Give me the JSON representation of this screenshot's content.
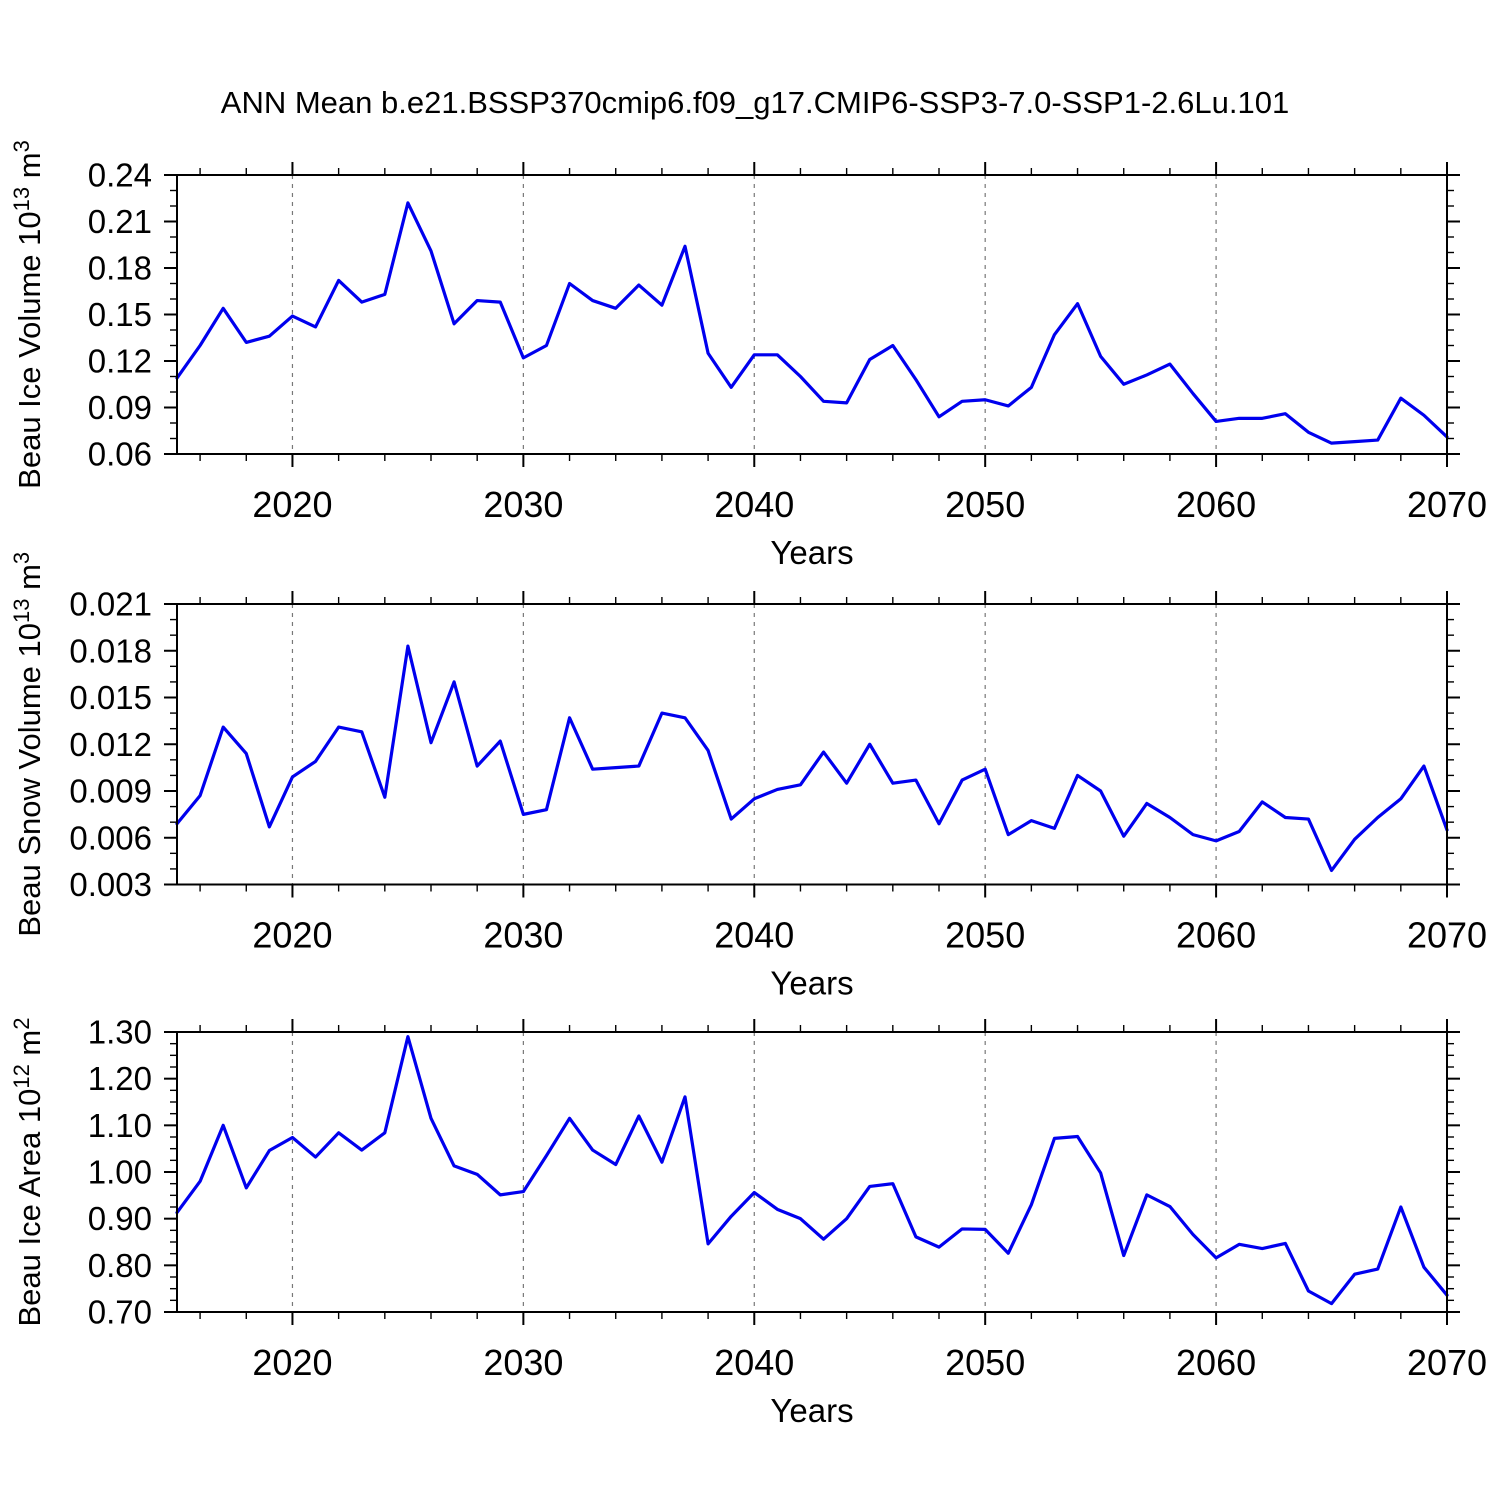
{
  "title": "ANN Mean b.e21.BSSP370cmip6.f09_g17.CMIP6-SSP3-7.0-SSP1-2.6Lu.101",
  "colors": {
    "line": "#0000ee",
    "grid": "#787878",
    "axis": "#000000",
    "background": "#ffffff",
    "text": "#000000"
  },
  "x_axis": {
    "label": "Years",
    "range": [
      2015,
      2070
    ],
    "major_ticks": [
      {
        "v": 2020,
        "label": "2020"
      },
      {
        "v": 2030,
        "label": "2030"
      },
      {
        "v": 2040,
        "label": "2040"
      },
      {
        "v": 2050,
        "label": "2050"
      },
      {
        "v": 2060,
        "label": "2060"
      },
      {
        "v": 2070,
        "label": "2070"
      }
    ],
    "minor_step": 2,
    "gridline_years": [
      2020,
      2030,
      2040,
      2050,
      2060
    ]
  },
  "years": [
    2015,
    2016,
    2017,
    2018,
    2019,
    2020,
    2021,
    2022,
    2023,
    2024,
    2025,
    2026,
    2027,
    2028,
    2029,
    2030,
    2031,
    2032,
    2033,
    2034,
    2035,
    2036,
    2037,
    2038,
    2039,
    2040,
    2041,
    2042,
    2043,
    2044,
    2045,
    2046,
    2047,
    2048,
    2049,
    2050,
    2051,
    2052,
    2053,
    2054,
    2055,
    2056,
    2057,
    2058,
    2059,
    2060,
    2061,
    2062,
    2063,
    2064,
    2065,
    2066,
    2067,
    2068,
    2069,
    2070
  ],
  "chart_data": [
    {
      "type": "line",
      "name": "beau-ice-volume",
      "ylabel_parts": [
        {
          "t": "Beau Ice Volume 10"
        },
        {
          "t": "13",
          "sup": true
        },
        {
          "t": " m"
        },
        {
          "t": "3",
          "sup": true
        }
      ],
      "ylim": [
        0.06,
        0.24
      ],
      "yticks": [
        {
          "v": 0.24,
          "label": "0.24"
        },
        {
          "v": 0.21,
          "label": "0.21"
        },
        {
          "v": 0.18,
          "label": "0.18"
        },
        {
          "v": 0.15,
          "label": "0.15"
        },
        {
          "v": 0.12,
          "label": "0.12"
        },
        {
          "v": 0.09,
          "label": "0.09"
        },
        {
          "v": 0.06,
          "label": "0.06"
        }
      ],
      "y_minor_step": 0.01,
      "values": [
        0.109,
        0.13,
        0.154,
        0.132,
        0.136,
        0.149,
        0.142,
        0.172,
        0.158,
        0.163,
        0.222,
        0.191,
        0.144,
        0.159,
        0.158,
        0.122,
        0.13,
        0.17,
        0.159,
        0.154,
        0.169,
        0.156,
        0.194,
        0.125,
        0.103,
        0.124,
        0.124,
        0.11,
        0.094,
        0.093,
        0.121,
        0.13,
        0.108,
        0.084,
        0.094,
        0.095,
        0.091,
        0.103,
        0.137,
        0.157,
        0.123,
        0.105,
        0.111,
        0.118,
        0.099,
        0.081,
        0.083,
        0.083,
        0.086,
        0.074,
        0.067,
        0.068,
        0.069,
        0.096,
        0.085,
        0.071
      ]
    },
    {
      "type": "line",
      "name": "beau-snow-volume",
      "ylabel_parts": [
        {
          "t": "Beau Snow Volume 10"
        },
        {
          "t": "13",
          "sup": true
        },
        {
          "t": " m"
        },
        {
          "t": "3",
          "sup": true
        }
      ],
      "ylim": [
        0.003,
        0.021
      ],
      "yticks": [
        {
          "v": 0.021,
          "label": "0.021"
        },
        {
          "v": 0.018,
          "label": "0.018"
        },
        {
          "v": 0.015,
          "label": "0.015"
        },
        {
          "v": 0.012,
          "label": "0.012"
        },
        {
          "v": 0.009,
          "label": "0.009"
        },
        {
          "v": 0.006,
          "label": "0.006"
        },
        {
          "v": 0.003,
          "label": "0.003"
        }
      ],
      "y_minor_step": 0.001,
      "values": [
        0.0069,
        0.0087,
        0.0131,
        0.0114,
        0.0067,
        0.0099,
        0.0109,
        0.0131,
        0.0128,
        0.0086,
        0.0183,
        0.0121,
        0.016,
        0.0106,
        0.0122,
        0.0075,
        0.0078,
        0.0137,
        0.0104,
        0.0105,
        0.0106,
        0.014,
        0.0137,
        0.0116,
        0.0072,
        0.0085,
        0.0091,
        0.0094,
        0.0115,
        0.0095,
        0.012,
        0.0095,
        0.0097,
        0.0069,
        0.0097,
        0.0104,
        0.0062,
        0.0071,
        0.0066,
        0.01,
        0.009,
        0.0061,
        0.0082,
        0.0073,
        0.0062,
        0.0058,
        0.0064,
        0.0083,
        0.0073,
        0.0072,
        0.0039,
        0.0059,
        0.0073,
        0.0085,
        0.0106,
        0.0065
      ]
    },
    {
      "type": "line",
      "name": "beau-ice-area",
      "ylabel_parts": [
        {
          "t": "Beau Ice Area 10"
        },
        {
          "t": "12",
          "sup": true
        },
        {
          "t": " m"
        },
        {
          "t": "2",
          "sup": true
        }
      ],
      "ylim": [
        0.7,
        1.3
      ],
      "yticks": [
        {
          "v": 1.3,
          "label": "1.30"
        },
        {
          "v": 1.2,
          "label": "1.20"
        },
        {
          "v": 1.1,
          "label": "1.10"
        },
        {
          "v": 1.0,
          "label": "1.00"
        },
        {
          "v": 0.9,
          "label": "0.90"
        },
        {
          "v": 0.8,
          "label": "0.80"
        },
        {
          "v": 0.7,
          "label": "0.70"
        }
      ],
      "y_minor_step": 0.025,
      "values": [
        0.913,
        0.98,
        1.1,
        0.966,
        1.046,
        1.074,
        1.032,
        1.084,
        1.047,
        1.084,
        1.29,
        1.115,
        1.013,
        0.995,
        0.951,
        0.958,
        1.035,
        1.115,
        1.047,
        1.016,
        1.12,
        1.021,
        1.161,
        0.846,
        0.905,
        0.956,
        0.92,
        0.9,
        0.856,
        0.9,
        0.969,
        0.975,
        0.861,
        0.839,
        0.878,
        0.877,
        0.826,
        0.93,
        1.072,
        1.076,
        0.998,
        0.821,
        0.951,
        0.926,
        0.866,
        0.816,
        0.845,
        0.836,
        0.847,
        0.745,
        0.718,
        0.781,
        0.792,
        0.925,
        0.796,
        0.736
      ]
    }
  ]
}
